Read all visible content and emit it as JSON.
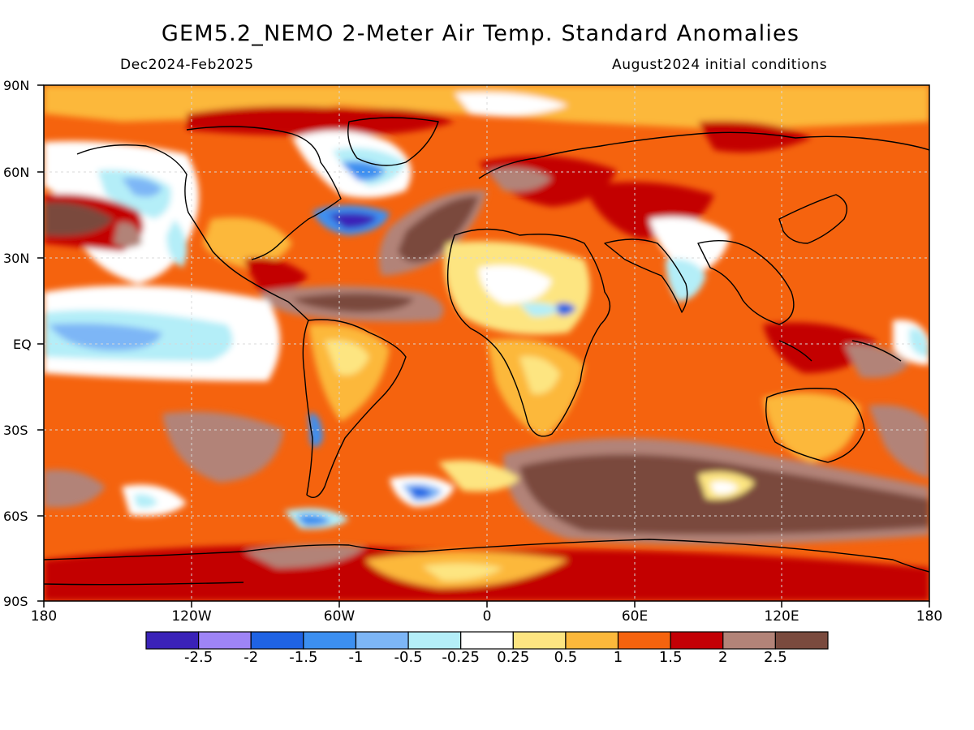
{
  "title": "GEM5.2_NEMO 2-Meter Air Temp. Standard Anomalies",
  "subtitle_left": "Dec2024-Feb2025",
  "subtitle_right": "August2024 initial conditions",
  "lat_labels": [
    "90N",
    "60N",
    "30N",
    "EQ",
    "30S",
    "60S",
    "90S"
  ],
  "lon_labels": [
    "180",
    "120W",
    "60W",
    "0",
    "60E",
    "120E",
    "180"
  ],
  "colorbar": {
    "colors": [
      "#3a22b8",
      "#9e84f6",
      "#1f63e4",
      "#3c8ff0",
      "#7db6f6",
      "#b4eef8",
      "#ffffff",
      "#fde581",
      "#fcb83b",
      "#f5630e",
      "#c30005",
      "#b28378",
      "#7a4a3e"
    ],
    "labels": [
      "-2.5",
      "-2",
      "-1.5",
      "-1",
      "-0.5",
      "-0.25",
      "0.25",
      "0.5",
      "1",
      "1.5",
      "2",
      "2.5"
    ]
  }
}
